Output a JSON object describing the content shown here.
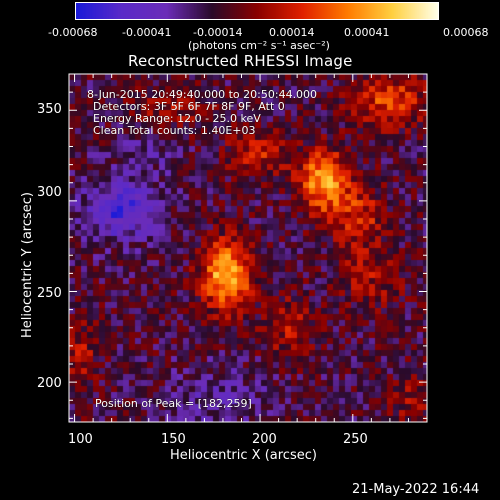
{
  "colorbar": {
    "tick_labels": [
      "-0.00068",
      "-0.00041",
      "-0.00014",
      "0.00014",
      "0.00041",
      "0.00068"
    ],
    "units_text": "(photons cm⁻² s⁻¹ asec⁻²)",
    "colors": [
      "#1a1ad8",
      "#5a2ac8",
      "#6b2cb8",
      "#2a0a2a",
      "#8a0000",
      "#e02000",
      "#ff7a00",
      "#ffd040",
      "#ffffe8"
    ]
  },
  "title": "Reconstructed RHESSI Image",
  "annotations": {
    "line1": "8-Jun-2015 20:49:40.000 to 20:50:44.000",
    "line2": "Detectors: 3F 5F 6F 7F 8F 9F, Att 0",
    "line3": "Energy Range: 12.0 - 25.0 keV",
    "line4": "Clean     Total counts: 1.40E+03",
    "peak": "Position of Peak = [182,259]"
  },
  "chart_data": {
    "type": "heatmap",
    "title": "Reconstructed RHESSI Image",
    "xlabel": "Heliocentric X (arcsec)",
    "ylabel": "Heliocentric Y (arcsec)",
    "xlim": [
      97,
      290
    ],
    "ylim": [
      178,
      370
    ],
    "x_ticks": [
      100,
      150,
      200,
      250
    ],
    "y_ticks": [
      200,
      250,
      300,
      350
    ],
    "color_range": [
      -0.00068,
      0.00068
    ],
    "colormap": "blue-purple-black-red-yellow-white",
    "peak_position": [
      182,
      259
    ],
    "sources": [
      {
        "x": 182,
        "y": 259,
        "sx": 9,
        "sy": 13,
        "amp": 1.0
      },
      {
        "x": 234,
        "y": 311,
        "sx": 9,
        "sy": 12,
        "amp": 0.85
      },
      {
        "x": 253,
        "y": 290,
        "sx": 10,
        "sy": 14,
        "amp": 0.45
      },
      {
        "x": 270,
        "y": 355,
        "sx": 14,
        "sy": 10,
        "amp": 0.55
      },
      {
        "x": 199,
        "y": 326,
        "sx": 12,
        "sy": 9,
        "amp": 0.4
      },
      {
        "x": 150,
        "y": 350,
        "sx": 15,
        "sy": 9,
        "amp": 0.3
      },
      {
        "x": 215,
        "y": 230,
        "sx": 10,
        "sy": 12,
        "amp": 0.32
      },
      {
        "x": 104,
        "y": 215,
        "sx": 6,
        "sy": 14,
        "amp": 0.3
      },
      {
        "x": 282,
        "y": 190,
        "sx": 8,
        "sy": 11,
        "amp": 0.25
      },
      {
        "x": 260,
        "y": 255,
        "sx": 12,
        "sy": 10,
        "amp": 0.28
      },
      {
        "x": 124,
        "y": 295,
        "sx": 14,
        "sy": 12,
        "amp": -0.55
      },
      {
        "x": 180,
        "y": 190,
        "sx": 20,
        "sy": 12,
        "amp": -0.25
      },
      {
        "x": 140,
        "y": 330,
        "sx": 12,
        "sy": 10,
        "amp": -0.2
      }
    ]
  },
  "footer_timestamp": "21-May-2022 16:44"
}
